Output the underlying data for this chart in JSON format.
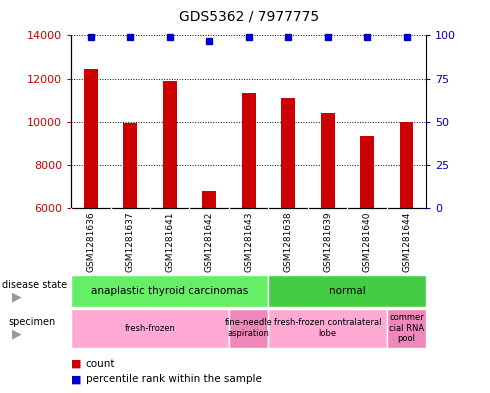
{
  "title": "GDS5362 / 7977775",
  "samples": [
    "GSM1281636",
    "GSM1281637",
    "GSM1281641",
    "GSM1281642",
    "GSM1281643",
    "GSM1281638",
    "GSM1281639",
    "GSM1281640",
    "GSM1281644"
  ],
  "counts": [
    12450,
    9950,
    11900,
    6800,
    11350,
    11100,
    10400,
    9350,
    10000
  ],
  "percentile_ranks": [
    99,
    99,
    99,
    97,
    99,
    99,
    99,
    99,
    99
  ],
  "ylim_left": [
    6000,
    14000
  ],
  "ylim_right": [
    0,
    100
  ],
  "yticks_left": [
    6000,
    8000,
    10000,
    12000,
    14000
  ],
  "yticks_right": [
    0,
    25,
    50,
    75,
    100
  ],
  "bar_color": "#cc0000",
  "dot_color": "#0000cc",
  "bar_width": 0.35,
  "disease_state_groups": [
    {
      "label": "anaplastic thyroid carcinomas",
      "start": 0,
      "end": 5,
      "color": "#66ee66"
    },
    {
      "label": "normal",
      "start": 5,
      "end": 9,
      "color": "#44cc44"
    }
  ],
  "specimen_groups": [
    {
      "label": "fresh-frozen",
      "start": 0,
      "end": 4,
      "color": "#ffaad4"
    },
    {
      "label": "fine-needle\naspiration",
      "start": 4,
      "end": 5,
      "color": "#ee88bb"
    },
    {
      "label": "fresh-frozen contralateral\nlobe",
      "start": 5,
      "end": 8,
      "color": "#ffaad4"
    },
    {
      "label": "commer\ncial RNA\npool",
      "start": 8,
      "end": 9,
      "color": "#ee88bb"
    }
  ],
  "legend_count_color": "#cc0000",
  "legend_pct_color": "#0000cc",
  "left_tick_color": "#cc0000",
  "right_tick_color": "#0000cc",
  "gray_bg": "#c8c8c8",
  "white_bg": "#ffffff"
}
